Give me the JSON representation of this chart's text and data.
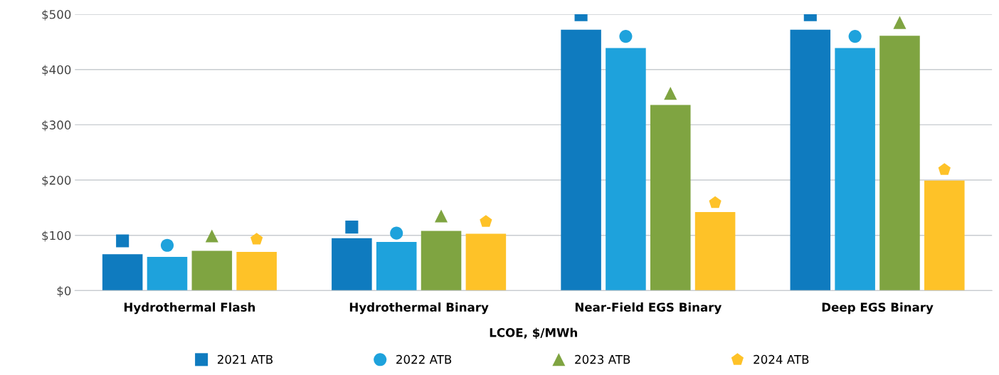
{
  "chart_data": {
    "type": "bar",
    "xlabel": "LCOE, $/MWh",
    "categories": [
      "Hydrothermal Flash",
      "Hydrothermal Binary",
      "Near-Field EGS Binary",
      "Deep EGS Binary"
    ],
    "series": [
      {
        "color": "#0f7bbf",
        "values": [
          66,
          95,
          472,
          472
        ]
      },
      {
        "color": "#1ea2dc",
        "values": [
          61,
          88,
          439,
          439
        ]
      },
      {
        "color": "#7fa441",
        "values": [
          72,
          108,
          336,
          461
        ]
      },
      {
        "color": "#fec228",
        "values": [
          70,
          103,
          142,
          199
        ]
      },
      {
        "type": "scatter",
        "name": "2021 ATB",
        "color": "#0f7bbf",
        "marker": "square",
        "x": [
          "Hydrothermal Flash",
          "Hydrothermal Binary",
          "Near-Field EGS Binary",
          "Deep EGS Binary"
        ],
        "values": [
          90,
          115,
          499,
          499
        ]
      },
      {
        "type": "scatter",
        "name": "2022 ATB",
        "color": "#1ea2dc",
        "marker": "circle",
        "x": [
          "Hydrothermal Flash",
          "Hydrothermal Binary",
          "Near-Field EGS Binary",
          "Deep EGS Binary"
        ],
        "values": [
          82,
          104,
          460,
          460
        ]
      },
      {
        "type": "scatter",
        "name": "2023 ATB",
        "color": "#7fa441",
        "marker": "triangle",
        "x": [
          "Hydrothermal Flash",
          "Hydrothermal Binary",
          "Near-Field EGS Binary",
          "Deep EGS Binary"
        ],
        "values": [
          99,
          135,
          357,
          485
        ]
      },
      {
        "type": "scatter",
        "name": "2024 ATB",
        "color": "#fec228",
        "x": [
          "Hydrothermal Flash",
          "Hydrothermal Binary",
          "Near-Field EGS Binary",
          "Deep EGS Binary"
        ],
        "values": [
          93,
          125,
          159,
          219
        ]
      }
    ],
    "ylim": [
      0,
      500
    ],
    "yticks": [
      {
        "value": 0,
        "label": "$0"
      },
      {
        "value": 100,
        "label": "$100"
      },
      {
        "value": 200,
        "label": "$200"
      },
      {
        "value": 300,
        "label": "$300"
      },
      {
        "value": 400,
        "label": "$400"
      },
      {
        "value": 500,
        "label": "$500"
      }
    ],
    "grid": "y",
    "legend": "bottom"
  }
}
